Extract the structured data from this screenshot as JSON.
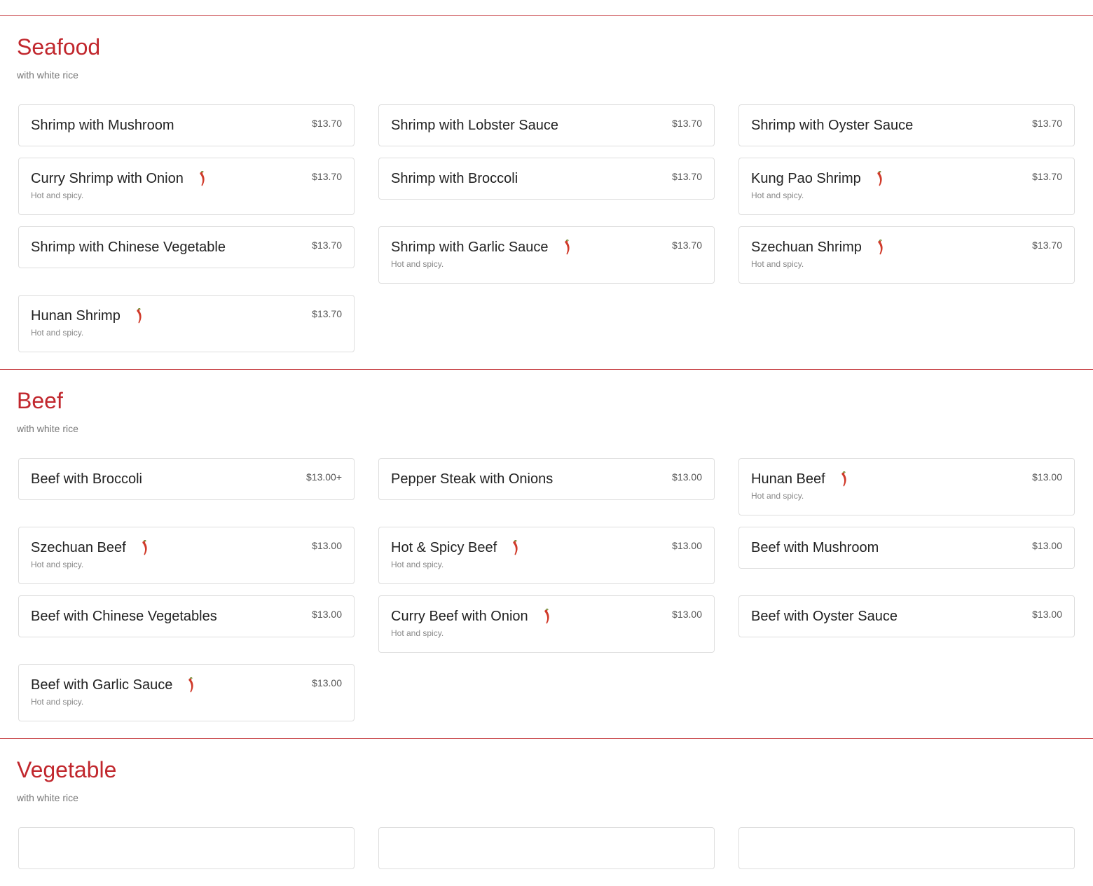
{
  "colors": {
    "accent": "#c1272d",
    "divider": "#c9474b"
  },
  "sections": [
    {
      "title": "Seafood",
      "subtitle": "with white rice",
      "items": [
        {
          "name": "Shrimp with Mushroom",
          "price": "$13.70"
        },
        {
          "name": "Shrimp with Lobster Sauce",
          "price": "$13.70"
        },
        {
          "name": "Shrimp with Oyster Sauce",
          "price": "$13.70"
        },
        {
          "name": "Curry Shrimp with Onion",
          "price": "$13.70",
          "spicy": true,
          "desc": "Hot and spicy."
        },
        {
          "name": "Shrimp with Broccoli",
          "price": "$13.70"
        },
        {
          "name": "Kung Pao Shrimp",
          "price": "$13.70",
          "spicy": true,
          "desc": "Hot and spicy."
        },
        {
          "name": "Shrimp with Chinese Vegetable",
          "price": "$13.70"
        },
        {
          "name": "Shrimp with Garlic Sauce",
          "price": "$13.70",
          "spicy": true,
          "desc": "Hot and spicy."
        },
        {
          "name": "Szechuan Shrimp",
          "price": "$13.70",
          "spicy": true,
          "desc": "Hot and spicy."
        },
        {
          "name": "Hunan Shrimp",
          "price": "$13.70",
          "spicy": true,
          "desc": "Hot and spicy."
        }
      ]
    },
    {
      "title": "Beef",
      "subtitle": "with white rice",
      "items": [
        {
          "name": "Beef with Broccoli",
          "price": "$13.00+"
        },
        {
          "name": "Pepper Steak with Onions",
          "price": "$13.00"
        },
        {
          "name": "Hunan Beef",
          "price": "$13.00",
          "spicy": true,
          "desc": "Hot and spicy."
        },
        {
          "name": "Szechuan Beef",
          "price": "$13.00",
          "spicy": true,
          "desc": "Hot and spicy."
        },
        {
          "name": "Hot & Spicy Beef",
          "price": "$13.00",
          "spicy": true,
          "desc": "Hot and spicy."
        },
        {
          "name": "Beef with Mushroom",
          "price": "$13.00"
        },
        {
          "name": "Beef with Chinese Vegetables",
          "price": "$13.00"
        },
        {
          "name": "Curry Beef with Onion",
          "price": "$13.00",
          "spicy": true,
          "desc": "Hot and spicy."
        },
        {
          "name": "Beef with Oyster Sauce",
          "price": "$13.00"
        },
        {
          "name": "Beef with Garlic Sauce",
          "price": "$13.00",
          "spicy": true,
          "desc": "Hot and spicy."
        }
      ]
    },
    {
      "title": "Vegetable",
      "subtitle": "with white rice",
      "items": [
        {
          "name": "",
          "price": ""
        },
        {
          "name": "",
          "price": ""
        },
        {
          "name": "",
          "price": ""
        }
      ]
    }
  ]
}
